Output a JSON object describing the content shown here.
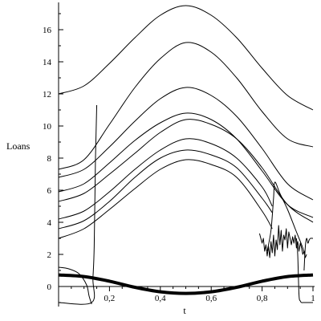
{
  "chart_data": {
    "type": "line",
    "title": "",
    "xlabel": "t",
    "ylabel": "Loans",
    "xlim": [
      0,
      1
    ],
    "ylim": [
      -1.2,
      17.6
    ],
    "grid": false,
    "legend": "none",
    "line_color": "#000000",
    "x_ticks": [
      {
        "v": 0.2,
        "label": "0,2"
      },
      {
        "v": 0.4,
        "label": "0,4"
      },
      {
        "v": 0.6,
        "label": "0,6"
      },
      {
        "v": 0.8,
        "label": "0,8"
      },
      {
        "v": 1.0,
        "label": "1"
      }
    ],
    "y_ticks": [
      {
        "v": 0,
        "label": "0"
      },
      {
        "v": 2,
        "label": "2"
      },
      {
        "v": 4,
        "label": "4"
      },
      {
        "v": 6,
        "label": "6"
      },
      {
        "v": 8,
        "label": "8"
      },
      {
        "v": 10,
        "label": "10"
      },
      {
        "v": 12,
        "label": "12"
      },
      {
        "v": 14,
        "label": "14"
      },
      {
        "v": 16,
        "label": "16"
      }
    ],
    "series": [
      {
        "x": [
          0,
          0.1,
          0.2,
          0.3,
          0.4,
          0.5,
          0.6,
          0.7,
          0.8,
          0.9,
          1.0
        ],
        "y": [
          12.0,
          12.5,
          13.9,
          15.5,
          16.9,
          17.5,
          16.9,
          15.5,
          13.6,
          11.9,
          11.0
        ]
      },
      {
        "x": [
          0,
          0.1,
          0.2,
          0.3,
          0.4,
          0.5,
          0.6,
          0.7,
          0.8,
          0.9,
          1.0
        ],
        "y": [
          7.3,
          7.9,
          10.1,
          12.4,
          14.2,
          15.2,
          14.6,
          13.0,
          10.9,
          9.2,
          8.7
        ]
      },
      {
        "x": [
          0,
          0.1,
          0.2,
          0.3,
          0.4,
          0.5,
          0.6,
          0.7,
          0.8,
          0.9,
          1.0
        ],
        "y": [
          6.8,
          7.3,
          8.7,
          10.3,
          11.7,
          12.4,
          11.9,
          10.6,
          8.6,
          6.4,
          5.4
        ]
      },
      {
        "x": [
          0,
          0.1,
          0.2,
          0.3,
          0.4,
          0.5,
          0.6,
          0.7,
          0.8,
          0.9,
          1.0
        ],
        "y": [
          5.9,
          6.4,
          7.7,
          9.1,
          10.2,
          10.8,
          10.4,
          9.2,
          7.2,
          5.1,
          4.3
        ]
      },
      {
        "x": [
          0,
          0.1,
          0.2,
          0.3,
          0.4,
          0.5,
          0.6,
          0.7,
          0.8,
          0.9,
          1.0
        ],
        "y": [
          5.3,
          5.8,
          7.0,
          8.3,
          9.6,
          10.4,
          10.1,
          9.2,
          7.4,
          5.1,
          4.0
        ]
      },
      {
        "x": [
          0,
          0.1,
          0.2,
          0.3,
          0.4,
          0.5,
          0.6,
          0.7,
          0.8,
          0.84
        ],
        "y": [
          4.2,
          4.7,
          5.9,
          7.3,
          8.5,
          9.2,
          8.9,
          8.0,
          6.2,
          5.0
        ]
      },
      {
        "x": [
          0,
          0.1,
          0.2,
          0.3,
          0.4,
          0.5,
          0.6,
          0.7,
          0.8,
          0.84
        ],
        "y": [
          3.6,
          4.1,
          5.3,
          6.8,
          8.0,
          8.5,
          8.2,
          7.4,
          5.5,
          4.6
        ]
      },
      {
        "x": [
          0,
          0.1,
          0.2,
          0.3,
          0.4,
          0.5,
          0.6,
          0.7,
          0.8,
          0.84
        ],
        "y": [
          3.0,
          3.6,
          4.8,
          6.1,
          7.3,
          7.9,
          7.6,
          6.8,
          4.7,
          3.6
        ]
      },
      {
        "x": [
          0,
          0.13,
          0.135,
          0.14,
          0.145,
          0.15
        ],
        "y": [
          -1.0,
          -1.0,
          0.5,
          2.5,
          8.0,
          11.3
        ]
      },
      {
        "x": [
          0,
          0.04,
          0.08,
          0.11,
          0.12,
          0.13
        ],
        "y": [
          1.2,
          1.1,
          0.8,
          0.1,
          -0.6,
          -1.1
        ]
      },
      {
        "x": [
          0.82,
          0.835,
          0.845,
          0.85,
          0.87,
          0.9,
          0.93,
          0.96,
          0.97
        ],
        "y": [
          2.2,
          3.5,
          5.5,
          6.5,
          5.8,
          4.8,
          3.6,
          2.4,
          1.8
        ]
      },
      {
        "x": [
          0.79,
          0.8,
          0.805,
          0.81,
          0.815,
          0.82,
          0.825,
          0.83,
          0.835,
          0.84,
          0.845,
          0.85,
          0.855,
          0.86,
          0.865,
          0.87,
          0.875,
          0.88,
          0.885,
          0.89,
          0.895,
          0.9,
          0.905,
          0.91,
          0.915,
          0.92,
          0.925,
          0.93,
          0.935,
          0.94,
          0.945,
          0.95,
          0.955,
          0.96,
          0.965,
          0.97,
          0.975
        ],
        "y": [
          3.3,
          2.7,
          3.0,
          2.2,
          2.6,
          1.9,
          2.5,
          1.8,
          2.8,
          2.1,
          3.2,
          1.9,
          2.9,
          2.3,
          3.8,
          2.6,
          3.5,
          2.2,
          3.2,
          2.9,
          3.6,
          2.4,
          3.4,
          3.0,
          2.6,
          3.1,
          2.7,
          3.2,
          2.4,
          2.8,
          2.2,
          2.7,
          2.4,
          2.0,
          2.2,
          1.8,
          2.0
        ]
      },
      {
        "x": [
          0.935,
          0.94,
          0.945,
          0.95,
          0.955,
          0.96,
          0.97,
          0.98,
          0.99,
          1.0
        ],
        "y": [
          3.0,
          2.0,
          -0.5,
          -0.9,
          -1.0,
          -1.0,
          -1.0,
          -1.0,
          -1.0,
          -1.0
        ]
      },
      {
        "x": [
          0.965,
          0.97,
          0.975,
          0.98,
          0.985,
          0.99,
          0.995,
          1.0
        ],
        "y": [
          1.0,
          2.5,
          3.0,
          2.7,
          2.9,
          3.0,
          3.0,
          3.0
        ]
      },
      {
        "x": [
          0,
          0.1,
          0.2,
          0.3,
          0.4,
          0.5,
          0.6,
          0.7,
          0.8,
          0.9,
          1.0
        ],
        "y": [
          0.72,
          0.62,
          0.33,
          -0.05,
          -0.33,
          -0.43,
          -0.33,
          -0.05,
          0.33,
          0.62,
          0.72
        ],
        "bold": true
      }
    ]
  }
}
